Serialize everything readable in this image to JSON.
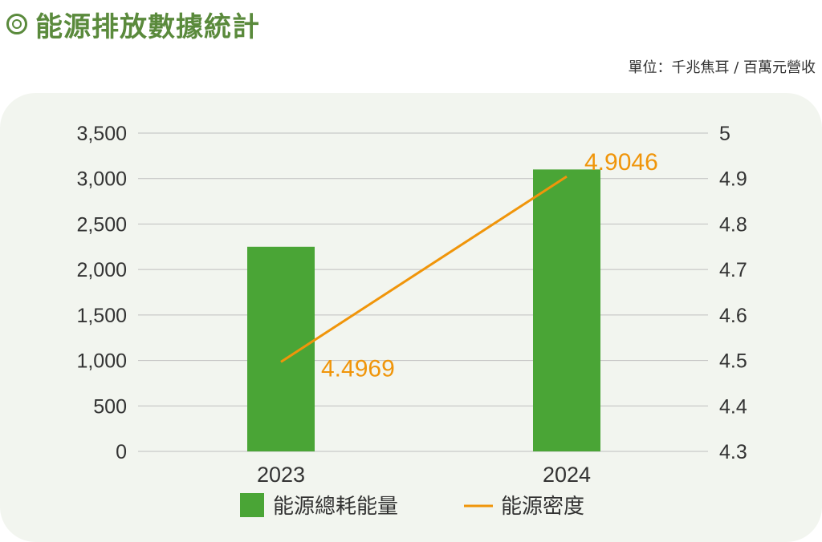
{
  "title": "能源排放數據統計",
  "unit_label": "單位：千兆焦耳 / 百萬元營收",
  "colors": {
    "bar": "#4aa536",
    "line": "#f0950a",
    "title": "#5a8a3c",
    "panel": "#f2f5ef",
    "grid": "#bfbfbf"
  },
  "chart_data": {
    "type": "bar",
    "categories": [
      "2023",
      "2024"
    ],
    "series": [
      {
        "name": "能源總耗能量",
        "type": "bar",
        "axis": "left",
        "values": [
          2250,
          3100
        ]
      },
      {
        "name": "能源密度",
        "type": "line",
        "axis": "right",
        "values": [
          4.4969,
          4.9046
        ]
      }
    ],
    "data_labels": [
      "4.4969",
      "4.9046"
    ],
    "y_left": {
      "ylim": [
        0,
        3500
      ],
      "ticks": [
        "0",
        "500",
        "1,000",
        "1,500",
        "2,000",
        "2,500",
        "3,000",
        "3,500"
      ]
    },
    "y_right": {
      "ylim": [
        4.3,
        5
      ],
      "ticks": [
        "4.3",
        "4.4",
        "4.5",
        "4.6",
        "4.7",
        "4.8",
        "4.9",
        "5"
      ]
    },
    "grid": true,
    "legend_position": "bottom"
  }
}
